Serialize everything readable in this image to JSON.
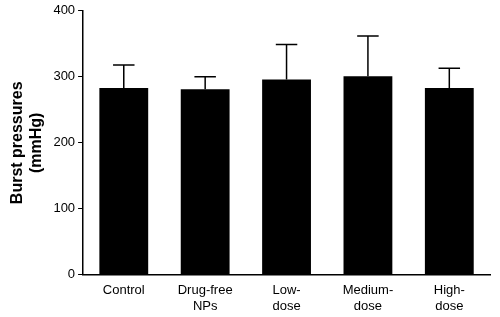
{
  "chart_data": {
    "type": "bar",
    "y_label": "Burst pressures (mmHg)",
    "categories": [
      "Control",
      "Drug-free NPs",
      "Low-dose",
      "Medium-dose",
      "High-dose"
    ],
    "values": [
      283,
      281,
      296,
      301,
      283
    ],
    "errors": [
      35,
      19,
      53,
      61,
      30
    ],
    "color": "#000000",
    "ylim": [
      0,
      400
    ],
    "yticks": [
      0,
      100,
      200,
      300,
      400
    ],
    "grid": false
  }
}
